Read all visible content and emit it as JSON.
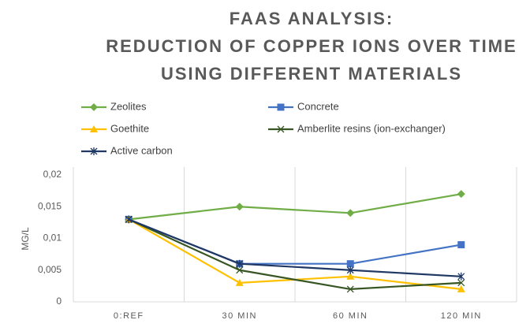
{
  "chart_data": {
    "type": "line",
    "title": [
      "FAAS ANALYSIS:",
      "REDUCTION OF COPPER IONS OVER TIME",
      "USING DIFFERENT MATERIALS"
    ],
    "ylabel": "MG/L",
    "categories": [
      "0:REF",
      "30 MIN",
      "60 MIN",
      "120 MIN"
    ],
    "series": [
      {
        "name": "Zeolites",
        "color": "#70ad47",
        "marker": "diamond",
        "values": [
          0.013,
          0.015,
          0.014,
          0.017
        ]
      },
      {
        "name": "Concrete",
        "color": "#4472c4",
        "marker": "square",
        "values": [
          0.013,
          0.006,
          0.006,
          0.009
        ]
      },
      {
        "name": "Goethite",
        "color": "#ffc000",
        "marker": "triangle",
        "values": [
          0.013,
          0.003,
          0.004,
          0.002
        ]
      },
      {
        "name": "Amberlite resins (ion-exchanger)",
        "color": "#375623",
        "marker": "x",
        "values": [
          0.013,
          0.005,
          0.002,
          0.003
        ]
      },
      {
        "name": "Active carbon",
        "color": "#1f3864",
        "marker": "star",
        "values": [
          0.013,
          0.006,
          0.005,
          0.004
        ]
      }
    ],
    "ylim": [
      0,
      0.02
    ],
    "yticks": [
      0,
      {
        "value": 0.005,
        "label": "0,005"
      },
      {
        "value": 0.01,
        "label": "0,01"
      },
      {
        "value": 0.015,
        "label": "0,015"
      },
      {
        "value": 0.02,
        "label": "0,02"
      }
    ],
    "legend": "top"
  }
}
